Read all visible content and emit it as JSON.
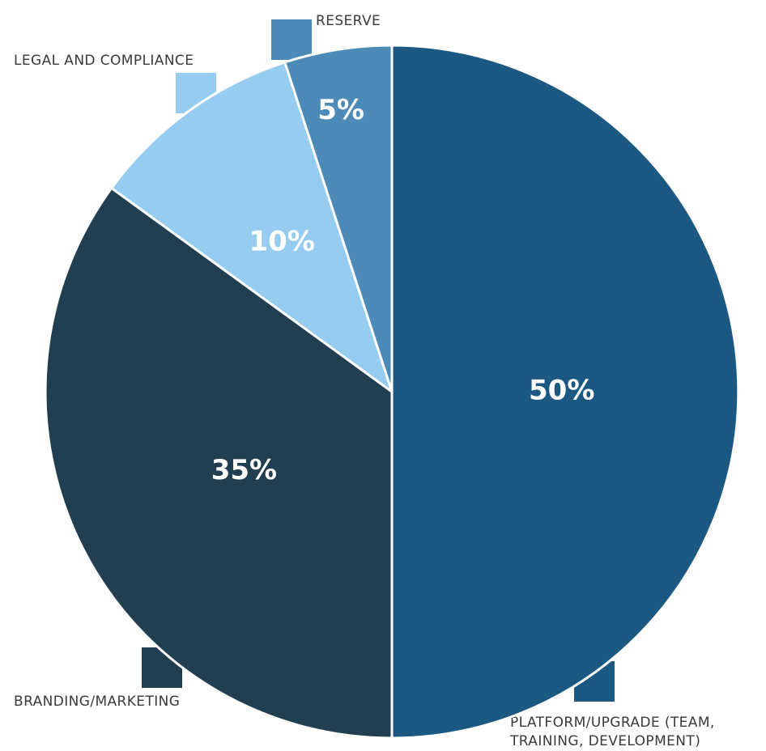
{
  "chart_data": {
    "type": "pie",
    "title": "",
    "start": "12 o'clock, clockwise",
    "slices": [
      {
        "label": "PLATFORM/UPGRADE (TEAM, TRAINING, DEVELOPMENT)",
        "label_lines": [
          "PLATFORM/UPGRADE (TEAM,",
          "TRAINING, DEVELOPMENT)"
        ],
        "value": 50,
        "display": "50%",
        "color": "#1b5882"
      },
      {
        "label": "BRANDING/MARKETING",
        "label_lines": [
          "BRANDING/MARKETING"
        ],
        "value": 35,
        "display": "35%",
        "color": "#223f51"
      },
      {
        "label": "LEGAL AND COMPLIANCE",
        "label_lines": [
          "LEGAL AND COMPLIANCE"
        ],
        "value": 10,
        "display": "10%",
        "color": "#95ccf0"
      },
      {
        "label": "RESERVE",
        "label_lines": [
          "RESERVE"
        ],
        "value": 5,
        "display": "5%",
        "color": "#4c8ab8"
      }
    ],
    "legend": "category labels placed beside each slice, each with a colour swatch"
  }
}
